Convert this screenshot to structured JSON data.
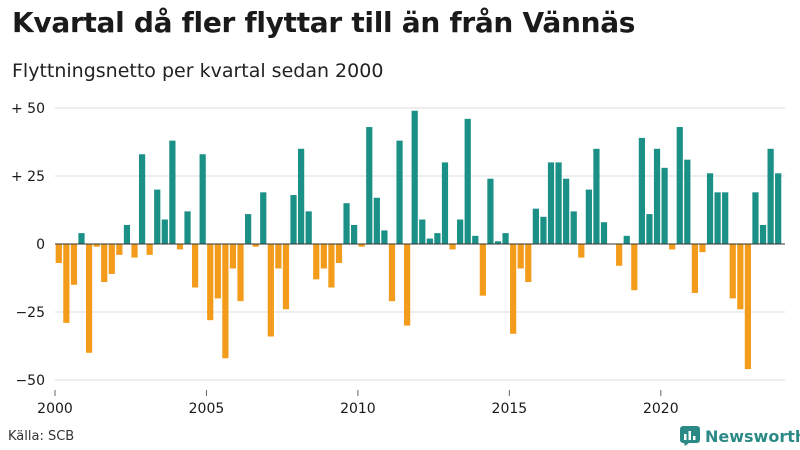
{
  "title": "Kvartal då fler flyttar till än från Vännäs",
  "subtitle": "Flyttningsnetto per kvartal sedan 2000",
  "source": "Källa: SCB",
  "brand": {
    "name": "Newsworthy",
    "icon": "bar-chart-logo-icon"
  },
  "colors": {
    "positive": "#1a9086",
    "negative": "#f39c1b",
    "grid": "#dcdcdc",
    "text": "#1a1a1a",
    "brand": "#2c8a86"
  },
  "chart_data": {
    "type": "bar",
    "x_start": 2000,
    "x_end": 2024,
    "periods_per_year": 4,
    "xticks": [
      2000,
      2005,
      2010,
      2015,
      2020
    ],
    "xtick_labels": [
      "2000",
      "2005",
      "2010",
      "2015",
      "2020"
    ],
    "yticks": [
      50,
      25,
      0,
      -25,
      -50
    ],
    "ytick_labels": [
      "+ 50",
      "+ 25",
      "0",
      "−25",
      "−50"
    ],
    "ylim": [
      -50,
      50
    ],
    "grid": true,
    "xlabel": "",
    "ylabel": "",
    "values": [
      -7,
      -29,
      -15,
      4,
      -40,
      -1,
      -14,
      -11,
      -4,
      7,
      -5,
      33,
      -4,
      20,
      9,
      38,
      -2,
      12,
      -16,
      33,
      -28,
      -20,
      -42,
      -9,
      -21,
      11,
      -1,
      19,
      -34,
      -9,
      -24,
      18,
      35,
      12,
      -13,
      -9,
      -16,
      -7,
      15,
      7,
      -1,
      43,
      17,
      5,
      -21,
      38,
      -30,
      49,
      9,
      2,
      4,
      30,
      -2,
      9,
      46,
      3,
      -19,
      24,
      1,
      4,
      -33,
      -9,
      -14,
      13,
      10,
      30,
      30,
      24,
      12,
      -5,
      20,
      35,
      8,
      0,
      -8,
      3,
      -17,
      39,
      11,
      35,
      28,
      -2,
      43,
      31,
      -18,
      -3,
      26,
      19,
      19,
      -20,
      -24,
      -46,
      19,
      7,
      35,
      26
    ]
  }
}
